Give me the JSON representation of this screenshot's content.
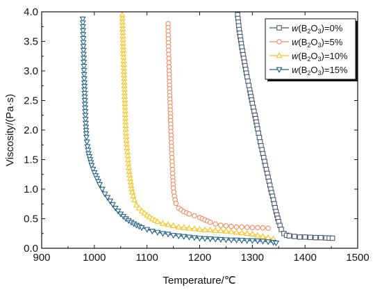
{
  "chart_data": {
    "type": "line",
    "xlabel": "Temperature/℃",
    "ylabel": "Viscosity/(Pa·s)",
    "xlim": [
      900,
      1500
    ],
    "ylim": [
      0.0,
      4.0
    ],
    "x_ticks": [
      "900",
      "1000",
      "1100",
      "1200",
      "1300",
      "1400",
      "1500"
    ],
    "y_ticks": [
      "0.0",
      "0.5",
      "1.0",
      "1.5",
      "2.0",
      "2.5",
      "3.0",
      "3.5",
      "4.0"
    ],
    "grid": false,
    "legend_position": "top-right",
    "series": [
      {
        "name": "w(B2O3)=0%",
        "legend": {
          "pre": "w(B",
          "sub1": "2",
          "mid": "O",
          "sub2": "3",
          "post": ")=0%"
        },
        "color": "#4a5873",
        "marker": "square",
        "points": [
          [
            1272,
            3.95
          ],
          [
            1275,
            3.7
          ],
          [
            1280,
            3.4
          ],
          [
            1285,
            3.15
          ],
          [
            1290,
            2.9
          ],
          [
            1295,
            2.68
          ],
          [
            1300,
            2.45
          ],
          [
            1305,
            2.25
          ],
          [
            1310,
            2.02
          ],
          [
            1315,
            1.8
          ],
          [
            1320,
            1.6
          ],
          [
            1325,
            1.4
          ],
          [
            1330,
            1.2
          ],
          [
            1335,
            1.0
          ],
          [
            1340,
            0.82
          ],
          [
            1345,
            0.62
          ],
          [
            1350,
            0.45
          ],
          [
            1355,
            0.32
          ],
          [
            1360,
            0.25
          ],
          [
            1365,
            0.22
          ],
          [
            1370,
            0.21
          ],
          [
            1380,
            0.2
          ],
          [
            1390,
            0.19
          ],
          [
            1400,
            0.19
          ],
          [
            1410,
            0.185
          ],
          [
            1420,
            0.18
          ],
          [
            1430,
            0.18
          ],
          [
            1440,
            0.175
          ],
          [
            1452,
            0.17
          ]
        ]
      },
      {
        "name": "w(B2O3)=5%",
        "legend": {
          "pre": "w(B",
          "sub1": "2",
          "mid": "O",
          "sub2": "3",
          "post": ")=5%"
        },
        "color": "#f08a62",
        "marker": "circle",
        "points": [
          [
            1140,
            3.8
          ],
          [
            1141,
            3.35
          ],
          [
            1142,
            3.0
          ],
          [
            1143,
            2.7
          ],
          [
            1144,
            2.4
          ],
          [
            1145,
            2.1
          ],
          [
            1146,
            1.85
          ],
          [
            1147,
            1.6
          ],
          [
            1148,
            1.4
          ],
          [
            1149,
            1.2
          ],
          [
            1150,
            1.02
          ],
          [
            1152,
            0.88
          ],
          [
            1155,
            0.76
          ],
          [
            1160,
            0.68
          ],
          [
            1170,
            0.62
          ],
          [
            1180,
            0.58
          ],
          [
            1190,
            0.55
          ],
          [
            1200,
            0.52
          ],
          [
            1210,
            0.48
          ],
          [
            1220,
            0.44
          ],
          [
            1230,
            0.41
          ],
          [
            1240,
            0.39
          ],
          [
            1250,
            0.38
          ],
          [
            1260,
            0.37
          ],
          [
            1270,
            0.36
          ],
          [
            1280,
            0.36
          ],
          [
            1290,
            0.355
          ],
          [
            1300,
            0.35
          ],
          [
            1310,
            0.35
          ],
          [
            1320,
            0.345
          ],
          [
            1330,
            0.34
          ]
        ]
      },
      {
        "name": "w(B2O3)=10%",
        "legend": {
          "pre": "w(B",
          "sub1": "2",
          "mid": "O",
          "sub2": "3",
          "post": ")=10%"
        },
        "color": "#f7c21d",
        "marker": "triangle-up",
        "points": [
          [
            1053,
            3.95
          ],
          [
            1054,
            3.65
          ],
          [
            1055,
            3.35
          ],
          [
            1056,
            3.05
          ],
          [
            1057,
            2.75
          ],
          [
            1058,
            2.45
          ],
          [
            1059,
            2.2
          ],
          [
            1060,
            1.95
          ],
          [
            1062,
            1.7
          ],
          [
            1064,
            1.5
          ],
          [
            1066,
            1.3
          ],
          [
            1069,
            1.12
          ],
          [
            1072,
            0.95
          ],
          [
            1076,
            0.82
          ],
          [
            1080,
            0.73
          ],
          [
            1090,
            0.63
          ],
          [
            1100,
            0.56
          ],
          [
            1110,
            0.5
          ],
          [
            1120,
            0.45
          ],
          [
            1130,
            0.42
          ],
          [
            1140,
            0.4
          ],
          [
            1150,
            0.38
          ],
          [
            1160,
            0.36
          ],
          [
            1170,
            0.35
          ],
          [
            1180,
            0.34
          ],
          [
            1190,
            0.33
          ],
          [
            1200,
            0.32
          ],
          [
            1210,
            0.31
          ],
          [
            1220,
            0.31
          ],
          [
            1230,
            0.3
          ],
          [
            1240,
            0.3
          ],
          [
            1250,
            0.29
          ],
          [
            1260,
            0.28
          ],
          [
            1270,
            0.27
          ],
          [
            1280,
            0.26
          ],
          [
            1290,
            0.25
          ],
          [
            1300,
            0.24
          ],
          [
            1310,
            0.22
          ],
          [
            1320,
            0.2
          ],
          [
            1330,
            0.18
          ],
          [
            1340,
            0.16
          ]
        ]
      },
      {
        "name": "w(B2O3)=15%",
        "legend": {
          "pre": "w(B",
          "sub1": "2",
          "mid": "O",
          "sub2": "3",
          "post": ")=15%"
        },
        "color": "#1f5f87",
        "marker": "triangle-down",
        "points": [
          [
            978,
            3.88
          ],
          [
            979,
            3.55
          ],
          [
            980,
            3.15
          ],
          [
            981,
            2.8
          ],
          [
            982,
            2.5
          ],
          [
            983,
            2.25
          ],
          [
            984,
            2.05
          ],
          [
            985,
            1.88
          ],
          [
            987,
            1.72
          ],
          [
            989,
            1.6
          ],
          [
            992,
            1.5
          ],
          [
            995,
            1.4
          ],
          [
            1000,
            1.28
          ],
          [
            1005,
            1.18
          ],
          [
            1010,
            1.08
          ],
          [
            1015,
            1.0
          ],
          [
            1020,
            0.92
          ],
          [
            1030,
            0.8
          ],
          [
            1040,
            0.68
          ],
          [
            1050,
            0.58
          ],
          [
            1060,
            0.5
          ],
          [
            1070,
            0.44
          ],
          [
            1080,
            0.39
          ],
          [
            1090,
            0.35
          ],
          [
            1100,
            0.32
          ],
          [
            1110,
            0.29
          ],
          [
            1120,
            0.27
          ],
          [
            1130,
            0.25
          ],
          [
            1140,
            0.24
          ],
          [
            1150,
            0.22
          ],
          [
            1160,
            0.21
          ],
          [
            1170,
            0.2
          ],
          [
            1180,
            0.19
          ],
          [
            1190,
            0.18
          ],
          [
            1200,
            0.17
          ],
          [
            1210,
            0.165
          ],
          [
            1220,
            0.16
          ],
          [
            1230,
            0.155
          ],
          [
            1240,
            0.15
          ],
          [
            1250,
            0.145
          ],
          [
            1260,
            0.14
          ],
          [
            1270,
            0.14
          ],
          [
            1280,
            0.135
          ],
          [
            1290,
            0.13
          ],
          [
            1300,
            0.13
          ],
          [
            1310,
            0.125
          ],
          [
            1320,
            0.12
          ],
          [
            1330,
            0.11
          ],
          [
            1340,
            0.1
          ],
          [
            1345,
            0.09
          ]
        ]
      }
    ]
  }
}
